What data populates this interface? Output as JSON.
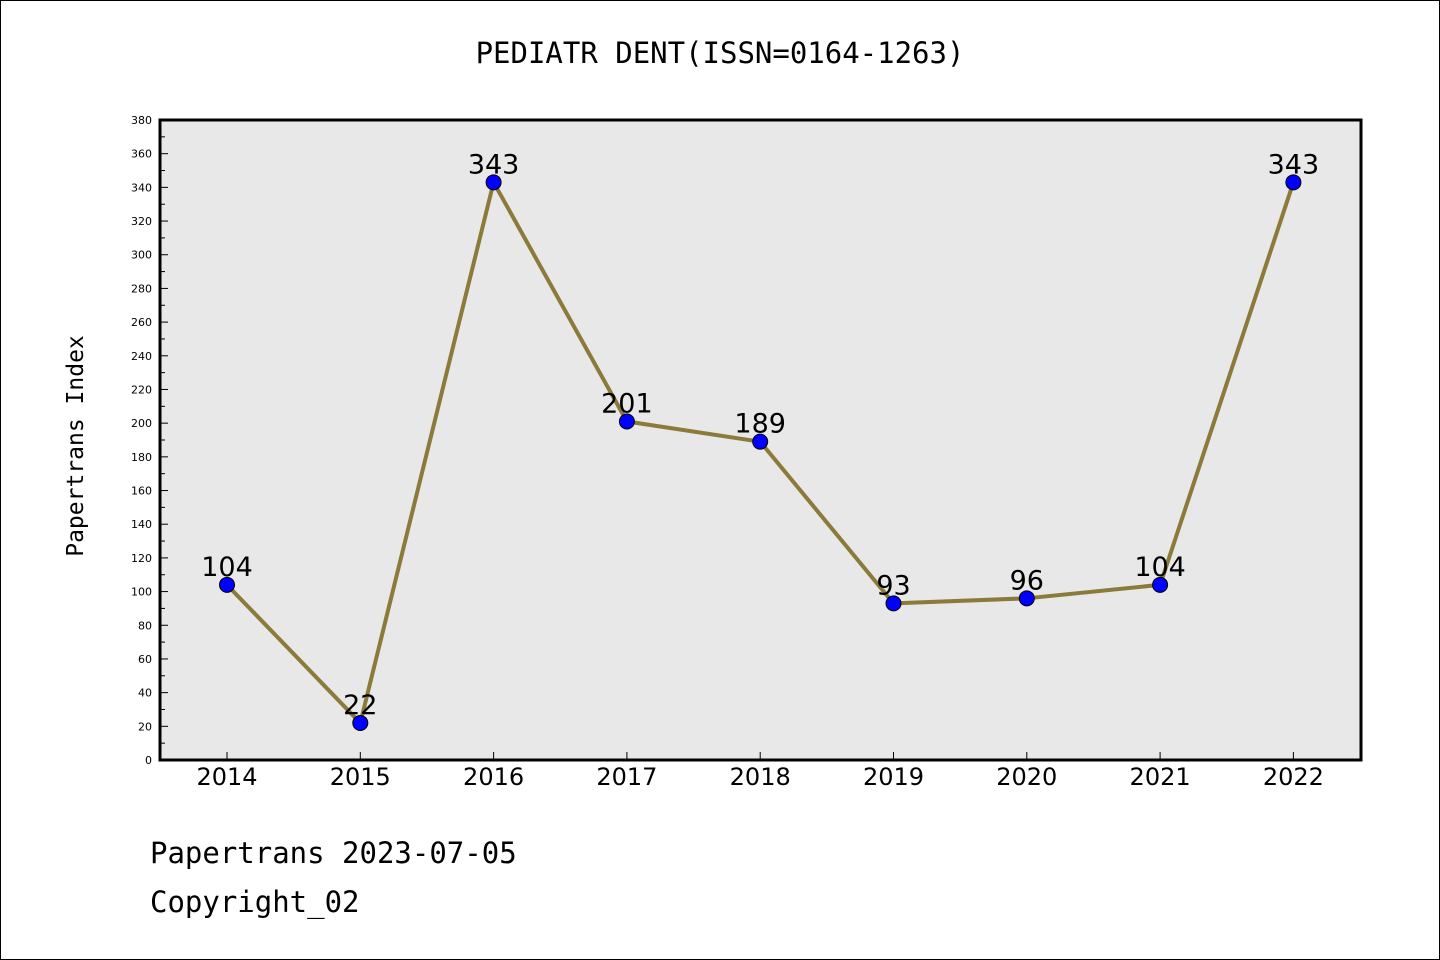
{
  "chart_data": {
    "type": "line",
    "title": "PEDIATR DENT(ISSN=0164-1263)",
    "xlabel": "",
    "ylabel": "Papertrans Index",
    "categories": [
      "2014",
      "2015",
      "2016",
      "2017",
      "2018",
      "2019",
      "2020",
      "2021",
      "2022"
    ],
    "values": [
      104,
      22,
      343,
      201,
      189,
      93,
      96,
      104,
      343
    ],
    "ylim": [
      0,
      380
    ],
    "yticks": [
      0,
      20,
      40,
      60,
      80,
      100,
      120,
      140,
      160,
      180,
      200,
      220,
      240,
      260,
      280,
      300,
      320,
      340,
      360,
      380
    ],
    "grid": false,
    "legend": "none",
    "colors": {
      "line": "#8b7a3a",
      "marker": "#0000ff",
      "plot_background": "#e8e8e8"
    }
  },
  "footer": {
    "date_line": "Papertrans 2023-07-05",
    "copyright": "Copyright_02"
  }
}
